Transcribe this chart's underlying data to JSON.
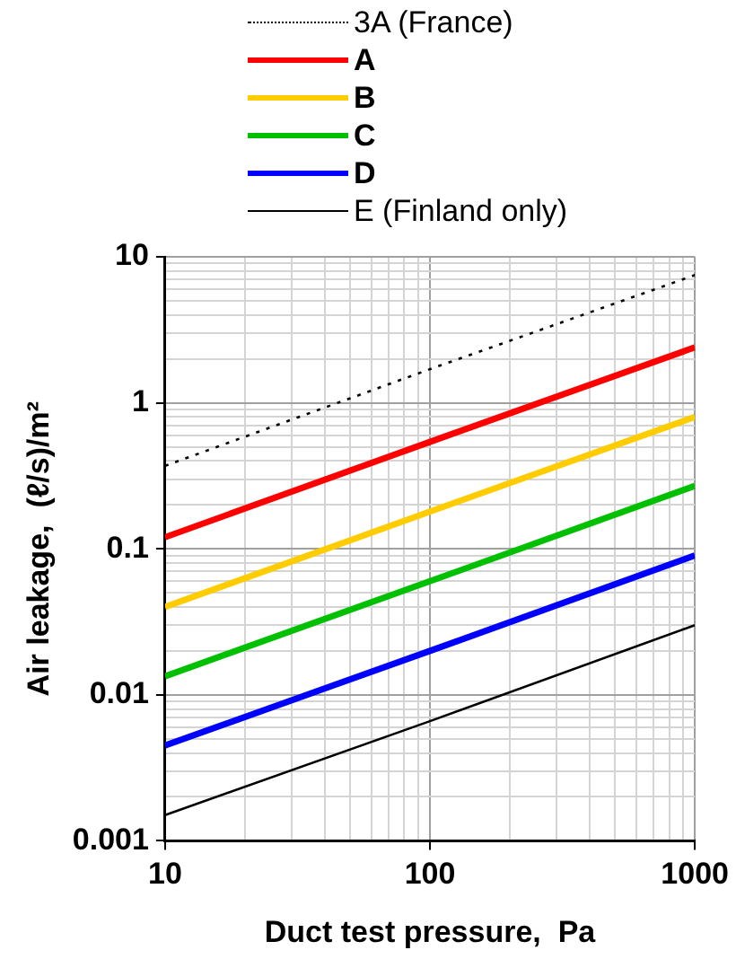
{
  "chart_data": {
    "type": "line",
    "xlabel": "Duct test pressure,  Pa",
    "ylabel": "Air leakage,  (ℓ/s)/m²",
    "log": "xy",
    "grid": true,
    "legend": "top",
    "marker": "none",
    "x": [
      10,
      100,
      1000
    ],
    "xlim": [
      10,
      1000
    ],
    "xticks": [
      10,
      100,
      1000
    ],
    "ylim": [
      0.001,
      10
    ],
    "yticks": [
      0.001,
      0.01,
      0.1,
      1,
      10
    ],
    "series": [
      {
        "name": "3A (France)",
        "color": "#000000",
        "line_style": "dotted",
        "values": [
          0.37,
          1.7,
          7.5
        ]
      },
      {
        "name": "A",
        "color": "#ff0000",
        "values": [
          0.12,
          0.54,
          2.4
        ]
      },
      {
        "name": "B",
        "color": "#ffcc00",
        "values": [
          0.04,
          0.18,
          0.8
        ]
      },
      {
        "name": "C",
        "color": "#00c000",
        "values": [
          0.0134,
          0.06,
          0.27
        ]
      },
      {
        "name": "D",
        "color": "#0000ff",
        "values": [
          0.0045,
          0.02,
          0.09
        ]
      },
      {
        "name": "E (Finland only)",
        "color": "#000000",
        "values": [
          0.0015,
          0.0066,
          0.03
        ]
      }
    ]
  }
}
